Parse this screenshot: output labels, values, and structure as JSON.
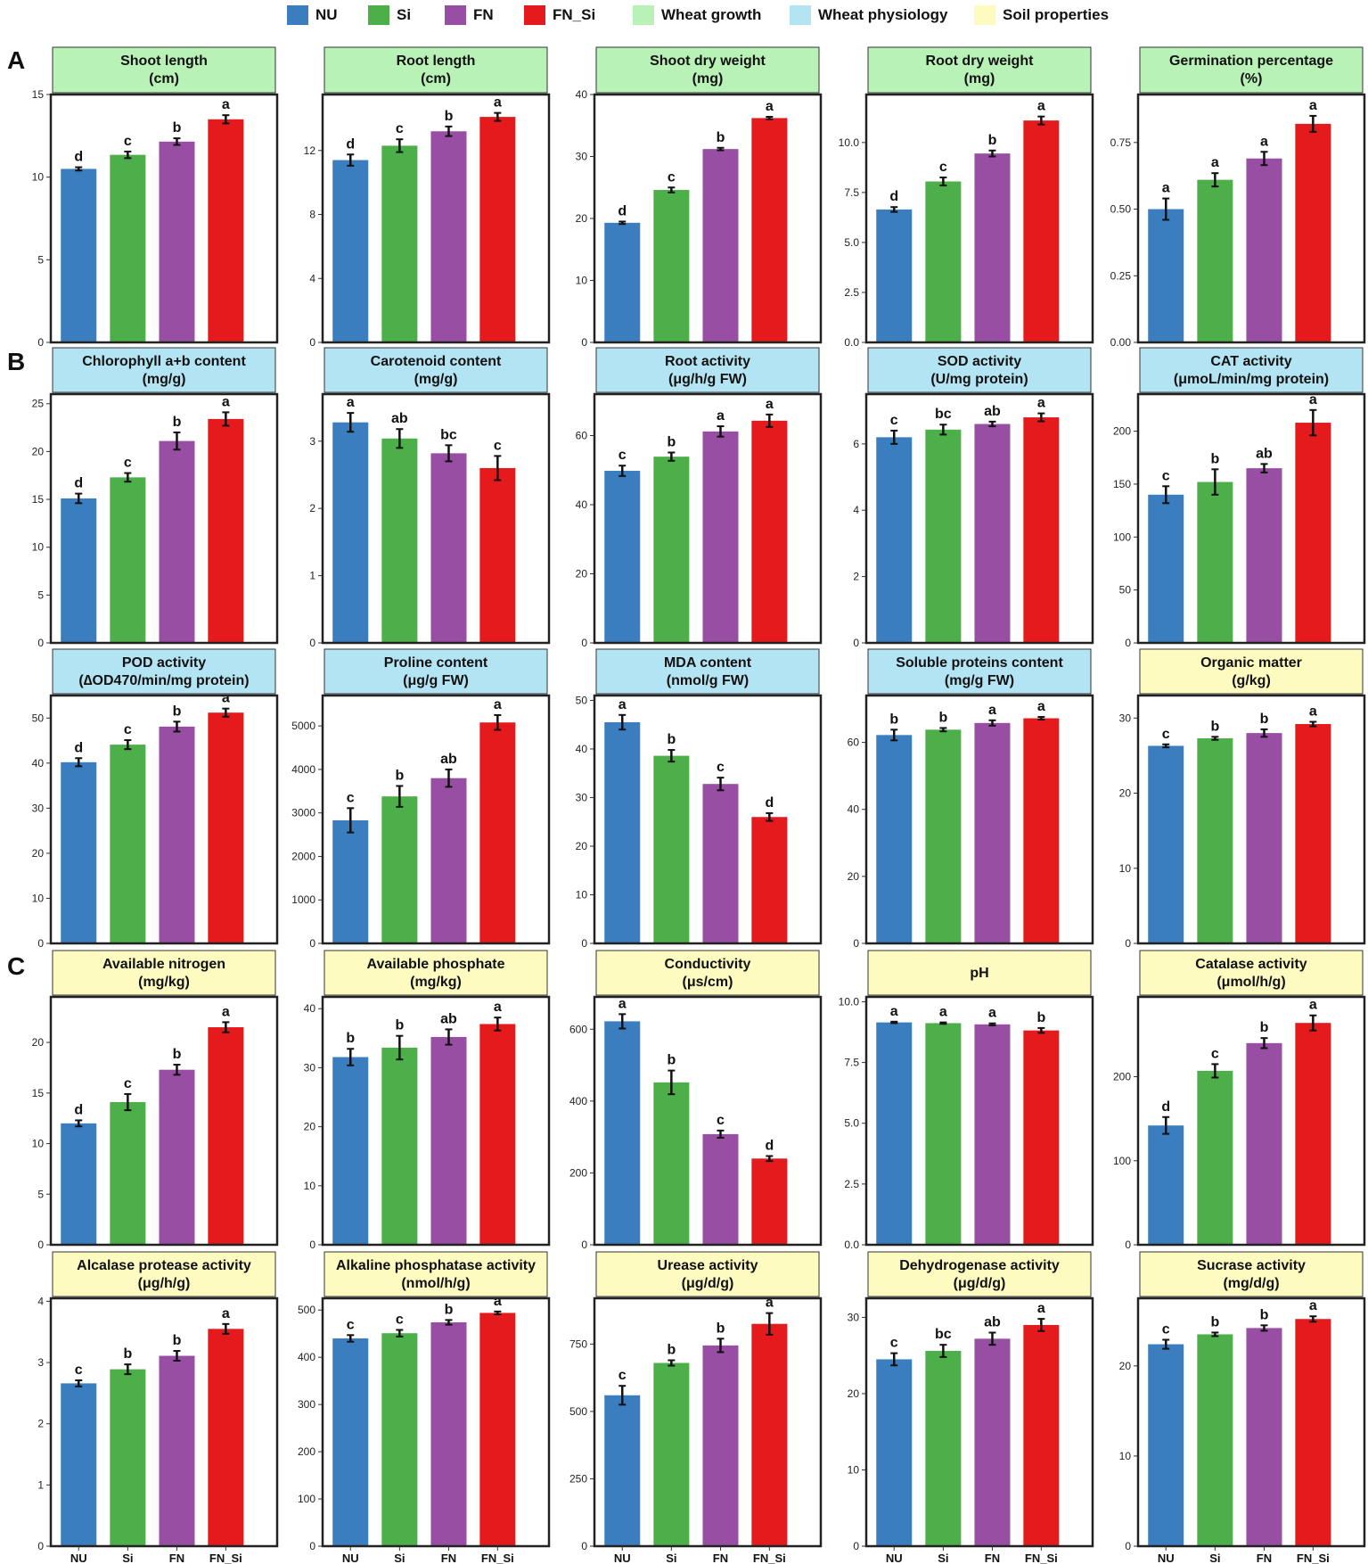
{
  "legend": {
    "groups": [
      {
        "label": "NU",
        "color": "#3a7ebf"
      },
      {
        "label": "Si",
        "color": "#4caf4a"
      },
      {
        "label": "FN",
        "color": "#984ea3"
      },
      {
        "label": "FN_Si",
        "color": "#e41a1c"
      }
    ],
    "categories": [
      {
        "label": "Wheat growth",
        "color": "#b9f2b6"
      },
      {
        "label": "Wheat physiology",
        "color": "#b3e4f3"
      },
      {
        "label": "Soil properties",
        "color": "#fdfbc0"
      }
    ]
  },
  "row_letters": [
    "A",
    "B",
    "C"
  ],
  "colors": {
    "NU": "#3a7ebf",
    "Si": "#4caf4a",
    "FN": "#984ea3",
    "FN_Si": "#e41a1c"
  },
  "chart_data": [
    {
      "type": "bar",
      "title": "Shoot length",
      "unit": "(cm)",
      "header": "growth",
      "categories": [
        "NU",
        "Si",
        "FN",
        "FN_Si"
      ],
      "values": [
        10.5,
        11.35,
        12.15,
        13.5
      ],
      "errors": [
        0.1,
        0.2,
        0.2,
        0.25
      ],
      "letters": [
        "d",
        "c",
        "b",
        "a"
      ],
      "ylim": [
        0,
        15
      ],
      "ticks": [
        0,
        5,
        10,
        15
      ]
    },
    {
      "type": "bar",
      "title": "Root length",
      "unit": "(cm)",
      "header": "growth",
      "categories": [
        "NU",
        "Si",
        "FN",
        "FN_Si"
      ],
      "values": [
        11.4,
        12.3,
        13.2,
        14.1
      ],
      "errors": [
        0.35,
        0.4,
        0.3,
        0.25
      ],
      "letters": [
        "d",
        "c",
        "b",
        "a"
      ],
      "ylim": [
        0,
        15.5
      ],
      "ticks": [
        0,
        4,
        8,
        12
      ]
    },
    {
      "type": "bar",
      "title": "Shoot dry weight",
      "unit": "(mg)",
      "header": "growth",
      "categories": [
        "NU",
        "Si",
        "FN",
        "FN_Si"
      ],
      "values": [
        19.3,
        24.6,
        31.2,
        36.2
      ],
      "errors": [
        0.2,
        0.4,
        0.2,
        0.2
      ],
      "letters": [
        "d",
        "c",
        "b",
        "a"
      ],
      "ylim": [
        0,
        40
      ],
      "ticks": [
        0,
        10,
        20,
        30,
        40
      ]
    },
    {
      "type": "bar",
      "title": "Root dry weight",
      "unit": "(mg)",
      "header": "growth",
      "categories": [
        "NU",
        "Si",
        "FN",
        "FN_Si"
      ],
      "values": [
        6.65,
        8.05,
        9.45,
        11.1
      ],
      "errors": [
        0.12,
        0.2,
        0.15,
        0.2
      ],
      "letters": [
        "d",
        "c",
        "b",
        "a"
      ],
      "ylim": [
        0,
        12.4
      ],
      "ticks": [
        0,
        2.5,
        5,
        7.5,
        10
      ],
      "tick_labels": [
        "0.0",
        "2.5",
        "5.0",
        "7.5",
        "10.0"
      ]
    },
    {
      "type": "bar",
      "title": "Germination percentage",
      "unit": "(%)",
      "header": "growth",
      "categories": [
        "NU",
        "Si",
        "FN",
        "FN_Si"
      ],
      "values": [
        0.5,
        0.61,
        0.69,
        0.82
      ],
      "errors": [
        0.04,
        0.025,
        0.025,
        0.03
      ],
      "letters": [
        "a",
        "a",
        "a",
        "a"
      ],
      "ylim": [
        0,
        0.93
      ],
      "ticks": [
        0,
        0.25,
        0.5,
        0.75
      ],
      "tick_labels": [
        "0.00",
        "0.25",
        "0.50",
        "0.75"
      ]
    },
    {
      "type": "bar",
      "title": "Chlorophyll a+b content",
      "unit": "(mg/g)",
      "header": "physiology",
      "categories": [
        "NU",
        "Si",
        "FN",
        "FN_Si"
      ],
      "values": [
        15.1,
        17.3,
        21.1,
        23.4
      ],
      "errors": [
        0.5,
        0.45,
        0.9,
        0.7
      ],
      "letters": [
        "d",
        "c",
        "b",
        "a"
      ],
      "ylim": [
        0,
        26
      ],
      "ticks": [
        0,
        5,
        10,
        15,
        20,
        25
      ]
    },
    {
      "type": "bar",
      "title": "Carotenoid content",
      "unit": "(mg/g)",
      "header": "physiology",
      "categories": [
        "NU",
        "Si",
        "FN",
        "FN_Si"
      ],
      "values": [
        3.28,
        3.04,
        2.82,
        2.6
      ],
      "errors": [
        0.14,
        0.14,
        0.12,
        0.18
      ],
      "letters": [
        "a",
        "ab",
        "bc",
        "c"
      ],
      "ylim": [
        0,
        3.7
      ],
      "ticks": [
        0,
        1,
        2,
        3
      ]
    },
    {
      "type": "bar",
      "title": "Root activity",
      "unit": "(μg/h/g FW)",
      "header": "physiology",
      "categories": [
        "NU",
        "Si",
        "FN",
        "FN_Si"
      ],
      "values": [
        49.8,
        53.9,
        61.2,
        64.3
      ],
      "errors": [
        1.5,
        1.2,
        1.5,
        1.8
      ],
      "letters": [
        "c",
        "b",
        "a",
        "a"
      ],
      "ylim": [
        0,
        72
      ],
      "ticks": [
        0,
        20,
        40,
        60
      ]
    },
    {
      "type": "bar",
      "title": "SOD activity",
      "unit": "(U/mg protein)",
      "header": "physiology",
      "categories": [
        "NU",
        "Si",
        "FN",
        "FN_Si"
      ],
      "values": [
        6.2,
        6.43,
        6.6,
        6.8
      ],
      "errors": [
        0.2,
        0.15,
        0.07,
        0.12
      ],
      "letters": [
        "c",
        "bc",
        "ab",
        "a"
      ],
      "ylim": [
        0,
        7.5
      ],
      "ticks": [
        0,
        2,
        4,
        6
      ]
    },
    {
      "type": "bar",
      "title": "CAT activity",
      "unit": "(μmoL/min/mg protein)",
      "header": "physiology",
      "categories": [
        "NU",
        "Si",
        "FN",
        "FN_Si"
      ],
      "values": [
        140,
        152,
        165,
        208
      ],
      "errors": [
        8,
        12,
        4,
        12
      ],
      "letters": [
        "c",
        "b",
        "ab",
        "a"
      ],
      "ylim": [
        0,
        235
      ],
      "ticks": [
        0,
        50,
        100,
        150,
        200
      ]
    },
    {
      "type": "bar",
      "title": "POD activity",
      "unit": "(∆OD470/min/mg protein)",
      "header": "physiology",
      "categories": [
        "NU",
        "Si",
        "FN",
        "FN_Si"
      ],
      "values": [
        40.2,
        44.1,
        48.1,
        51.2
      ],
      "errors": [
        0.9,
        1.0,
        1.1,
        0.9
      ],
      "letters": [
        "d",
        "c",
        "b",
        "a"
      ],
      "ylim": [
        0,
        55
      ],
      "ticks": [
        0,
        10,
        20,
        30,
        40,
        50
      ]
    },
    {
      "type": "bar",
      "title": "Proline content",
      "unit": "(μg/g FW)",
      "header": "physiology",
      "categories": [
        "NU",
        "Si",
        "FN",
        "FN_Si"
      ],
      "values": [
        2830,
        3380,
        3800,
        5080
      ],
      "errors": [
        280,
        240,
        200,
        170
      ],
      "letters": [
        "c",
        "b",
        "ab",
        "a"
      ],
      "ylim": [
        0,
        5700
      ],
      "ticks": [
        0,
        1000,
        2000,
        3000,
        4000,
        5000
      ]
    },
    {
      "type": "bar",
      "title": "MDA content",
      "unit": "(nmol/g FW)",
      "header": "physiology",
      "categories": [
        "NU",
        "Si",
        "FN",
        "FN_Si"
      ],
      "values": [
        45.5,
        38.6,
        32.8,
        26
      ],
      "errors": [
        1.5,
        1.2,
        1.3,
        0.8
      ],
      "letters": [
        "a",
        "b",
        "c",
        "d"
      ],
      "ylim": [
        0,
        51
      ],
      "ticks": [
        0,
        10,
        20,
        30,
        40,
        50
      ]
    },
    {
      "type": "bar",
      "title": "Soluble proteins content",
      "unit": "(mg/g FW)",
      "header": "physiology",
      "categories": [
        "NU",
        "Si",
        "FN",
        "FN_Si"
      ],
      "values": [
        62.2,
        63.8,
        65.8,
        67.2
      ],
      "errors": [
        1.6,
        0.5,
        0.8,
        0.4
      ],
      "letters": [
        "b",
        "b",
        "a",
        "a"
      ],
      "ylim": [
        0,
        74
      ],
      "ticks": [
        0,
        20,
        40,
        60
      ]
    },
    {
      "type": "bar",
      "title": "Organic matter",
      "unit": "(g/kg)",
      "header": "soil",
      "categories": [
        "NU",
        "Si",
        "FN",
        "FN_Si"
      ],
      "values": [
        26.3,
        27.3,
        28.0,
        29.2
      ],
      "errors": [
        0.2,
        0.2,
        0.5,
        0.3
      ],
      "letters": [
        "c",
        "b",
        "b",
        "a"
      ],
      "ylim": [
        0,
        33
      ],
      "ticks": [
        0,
        10,
        20,
        30
      ]
    },
    {
      "type": "bar",
      "title": "Available nitrogen",
      "unit": "(mg/kg)",
      "header": "soil",
      "categories": [
        "NU",
        "Si",
        "FN",
        "FN_Si"
      ],
      "values": [
        12.0,
        14.1,
        17.3,
        21.5
      ],
      "errors": [
        0.3,
        0.8,
        0.5,
        0.5
      ],
      "letters": [
        "d",
        "c",
        "b",
        "a"
      ],
      "ylim": [
        0,
        24.5
      ],
      "ticks": [
        0,
        5,
        10,
        15,
        20
      ]
    },
    {
      "type": "bar",
      "title": "Available phosphate",
      "unit": "(mg/kg)",
      "header": "soil",
      "categories": [
        "NU",
        "Si",
        "FN",
        "FN_Si"
      ],
      "values": [
        31.8,
        33.4,
        35.2,
        37.4
      ],
      "errors": [
        1.4,
        2.0,
        1.3,
        1.1
      ],
      "letters": [
        "b",
        "b",
        "ab",
        "a"
      ],
      "ylim": [
        0,
        42
      ],
      "ticks": [
        0,
        10,
        20,
        30,
        40
      ]
    },
    {
      "type": "bar",
      "title": "Conductivity",
      "unit": "(μs/cm)",
      "header": "soil",
      "categories": [
        "NU",
        "Si",
        "FN",
        "FN_Si"
      ],
      "values": [
        622,
        452,
        308,
        240
      ],
      "errors": [
        20,
        33,
        10,
        7
      ],
      "letters": [
        "a",
        "b",
        "c",
        "d"
      ],
      "ylim": [
        0,
        690
      ],
      "ticks": [
        0,
        200,
        400,
        600
      ]
    },
    {
      "type": "bar",
      "title": "pH",
      "unit": "",
      "header": "soil",
      "categories": [
        "NU",
        "Si",
        "FN",
        "FN_Si"
      ],
      "values": [
        9.15,
        9.12,
        9.07,
        8.82
      ],
      "errors": [
        0.03,
        0.03,
        0.04,
        0.1
      ],
      "letters": [
        "a",
        "a",
        "a",
        "b"
      ],
      "ylim": [
        0,
        10.2
      ],
      "ticks": [
        0,
        2.5,
        5,
        7.5,
        10
      ],
      "tick_labels": [
        "0.0",
        "2.5",
        "5.0",
        "7.5",
        "10.0"
      ]
    },
    {
      "type": "bar",
      "title": "Catalase activity",
      "unit": "(μmol/h/g)",
      "header": "soil",
      "categories": [
        "NU",
        "Si",
        "FN",
        "FN_Si"
      ],
      "values": [
        142,
        207,
        240,
        264
      ],
      "errors": [
        10,
        8,
        6,
        9
      ],
      "letters": [
        "d",
        "c",
        "b",
        "a"
      ],
      "ylim": [
        0,
        295
      ],
      "ticks": [
        0,
        100,
        200
      ]
    },
    {
      "type": "bar",
      "title": "Alcalase protease activity",
      "unit": "(μg/h/g)",
      "header": "soil",
      "categories": [
        "NU",
        "Si",
        "FN",
        "FN_Si"
      ],
      "values": [
        2.66,
        2.89,
        3.11,
        3.55
      ],
      "errors": [
        0.05,
        0.08,
        0.08,
        0.08
      ],
      "letters": [
        "c",
        "b",
        "b",
        "a"
      ],
      "ylim": [
        0,
        4.05
      ],
      "ticks": [
        0,
        1,
        2,
        3,
        4
      ]
    },
    {
      "type": "bar",
      "title": "Alkaline phosphatase activity",
      "unit": "(nmol/h/g)",
      "header": "soil",
      "categories": [
        "NU",
        "Si",
        "FN",
        "FN_Si"
      ],
      "values": [
        440,
        451,
        474,
        494
      ],
      "errors": [
        7,
        7,
        5,
        3
      ],
      "letters": [
        "c",
        "c",
        "b",
        "a"
      ],
      "ylim": [
        0,
        525
      ],
      "ticks": [
        0,
        100,
        200,
        300,
        400,
        500
      ]
    },
    {
      "type": "bar",
      "title": "Urease activity",
      "unit": "(μg/d/g)",
      "header": "soil",
      "categories": [
        "NU",
        "Si",
        "FN",
        "FN_Si"
      ],
      "values": [
        560,
        680,
        745,
        825
      ],
      "errors": [
        35,
        10,
        25,
        40
      ],
      "letters": [
        "c",
        "b",
        "b",
        "a"
      ],
      "ylim": [
        0,
        920
      ],
      "ticks": [
        0,
        250,
        500,
        750
      ]
    },
    {
      "type": "bar",
      "title": "Dehydrogenase activity",
      "unit": "(μg/d/g)",
      "header": "soil",
      "categories": [
        "NU",
        "Si",
        "FN",
        "FN_Si"
      ],
      "values": [
        24.5,
        25.6,
        27.2,
        29.0
      ],
      "errors": [
        0.8,
        0.8,
        0.8,
        0.8
      ],
      "letters": [
        "c",
        "bc",
        "ab",
        "a"
      ],
      "ylim": [
        0,
        32.5
      ],
      "ticks": [
        0,
        10,
        20,
        30
      ]
    },
    {
      "type": "bar",
      "title": "Sucrase activity",
      "unit": "(mg/d/g)",
      "header": "soil",
      "categories": [
        "NU",
        "Si",
        "FN",
        "FN_Si"
      ],
      "values": [
        22.4,
        23.5,
        24.2,
        25.2
      ],
      "errors": [
        0.5,
        0.2,
        0.3,
        0.3
      ],
      "letters": [
        "c",
        "b",
        "b",
        "a"
      ],
      "ylim": [
        0,
        27.5
      ],
      "ticks": [
        0,
        10,
        20
      ]
    }
  ]
}
